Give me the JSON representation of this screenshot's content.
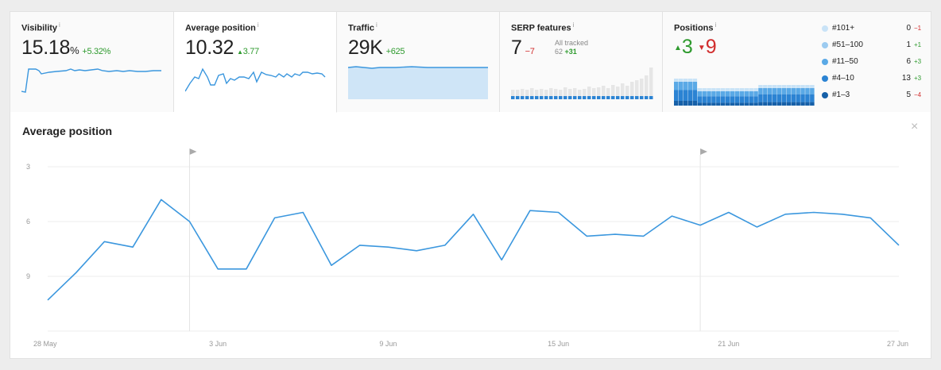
{
  "cards": {
    "visibility": {
      "title": "Visibility",
      "value": "15.18",
      "unit": "%",
      "delta": "+5.32%"
    },
    "avg_position": {
      "title": "Average position",
      "value": "10.32",
      "delta": "3.77"
    },
    "traffic": {
      "title": "Traffic",
      "value": "29K",
      "delta": "+625"
    },
    "serp": {
      "title": "SERP features",
      "value": "7",
      "delta": "−7",
      "sub_label": "All tracked",
      "sub_count": "62",
      "sub_delta": "+31"
    },
    "positions": {
      "title": "Positions",
      "up": "3",
      "down": "9",
      "legend": [
        {
          "label": "#101+",
          "count": "0",
          "change": "−1",
          "color": "#c9e3f7"
        },
        {
          "label": "#51–100",
          "count": "1",
          "change": "+1",
          "color": "#9ccbf0"
        },
        {
          "label": "#11–50",
          "count": "6",
          "change": "+3",
          "color": "#5aa9e6"
        },
        {
          "label": "#4–10",
          "count": "13",
          "change": "+3",
          "color": "#2b83d3"
        },
        {
          "label": "#1–3",
          "count": "5",
          "change": "−4",
          "color": "#1660a8"
        }
      ]
    },
    "info_glyph": "i"
  },
  "main": {
    "title": "Average position",
    "close_glyph": "×"
  },
  "chart_data": {
    "type": "line",
    "title": "Average position",
    "xlabel": "",
    "ylabel": "",
    "y_inverted": true,
    "ylim": [
      2,
      12
    ],
    "y_ticks": [
      3,
      6,
      9
    ],
    "x_tick_labels": [
      "28 May",
      "3 Jun",
      "9 Jun",
      "15 Jun",
      "21 Jun",
      "27 Jun"
    ],
    "x_tick_dates": [
      "2017-05-28",
      "2017-06-03",
      "2017-06-09",
      "2017-06-15",
      "2017-06-21",
      "2017-06-27"
    ],
    "annotations": [
      {
        "date": "2017-06-02",
        "type": "flag"
      },
      {
        "date": "2017-06-20",
        "type": "flag"
      }
    ],
    "series": [
      {
        "name": "",
        "color": "#3b97de",
        "x": [
          "2017-05-28",
          "2017-05-29",
          "2017-05-30",
          "2017-05-31",
          "2017-06-01",
          "2017-06-02",
          "2017-06-03",
          "2017-06-04",
          "2017-06-05",
          "2017-06-06",
          "2017-06-07",
          "2017-06-08",
          "2017-06-09",
          "2017-06-10",
          "2017-06-11",
          "2017-06-12",
          "2017-06-13",
          "2017-06-14",
          "2017-06-15",
          "2017-06-16",
          "2017-06-17",
          "2017-06-18",
          "2017-06-19",
          "2017-06-20",
          "2017-06-21",
          "2017-06-22",
          "2017-06-23",
          "2017-06-24",
          "2017-06-25",
          "2017-06-26",
          "2017-06-27"
        ],
        "values": [
          10.3,
          8.8,
          7.1,
          7.4,
          4.8,
          6.0,
          8.6,
          8.6,
          5.8,
          5.5,
          8.4,
          7.3,
          7.4,
          7.6,
          7.3,
          5.6,
          8.1,
          5.4,
          5.5,
          6.8,
          6.7,
          6.8,
          5.7,
          6.2,
          5.5,
          6.3,
          5.6,
          5.5,
          5.6,
          5.8,
          7.3
        ]
      }
    ]
  }
}
